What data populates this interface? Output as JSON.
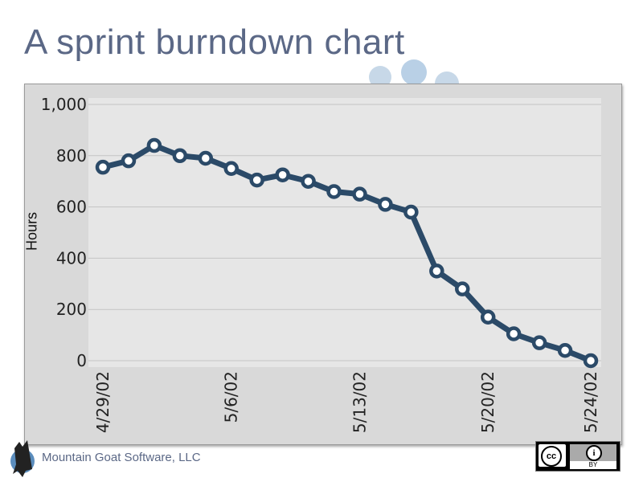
{
  "slide": {
    "title": "A sprint burndown chart",
    "footer_company": "Mountain Goat Software, LLC",
    "license_badge": {
      "left": "cc",
      "right_icon": "person-icon",
      "right_text": "BY"
    },
    "colors": {
      "title": "#5b6886",
      "line": "#2b4a68",
      "plot_bg": "#e6e6e6",
      "dots": "#c7d8e8"
    }
  },
  "chart_data": {
    "type": "line",
    "title": "",
    "xlabel": "",
    "ylabel": "Hours",
    "ylim": [
      0,
      1000
    ],
    "yticks": [
      "0",
      "200",
      "400",
      "600",
      "800",
      "1,000"
    ],
    "ytick_values": [
      0,
      200,
      400,
      600,
      800,
      1000
    ],
    "xtick_labels": [
      "4/29/02",
      "5/6/02",
      "5/13/02",
      "5/20/02",
      "5/24/02"
    ],
    "xtick_indices": [
      0,
      5,
      10,
      15,
      19
    ],
    "grid": true,
    "series": [
      {
        "values": [
          755,
          780,
          840,
          800,
          790,
          750,
          705,
          725,
          700,
          660,
          650,
          610,
          580,
          350,
          280,
          170,
          105,
          70,
          40,
          0
        ]
      }
    ]
  }
}
